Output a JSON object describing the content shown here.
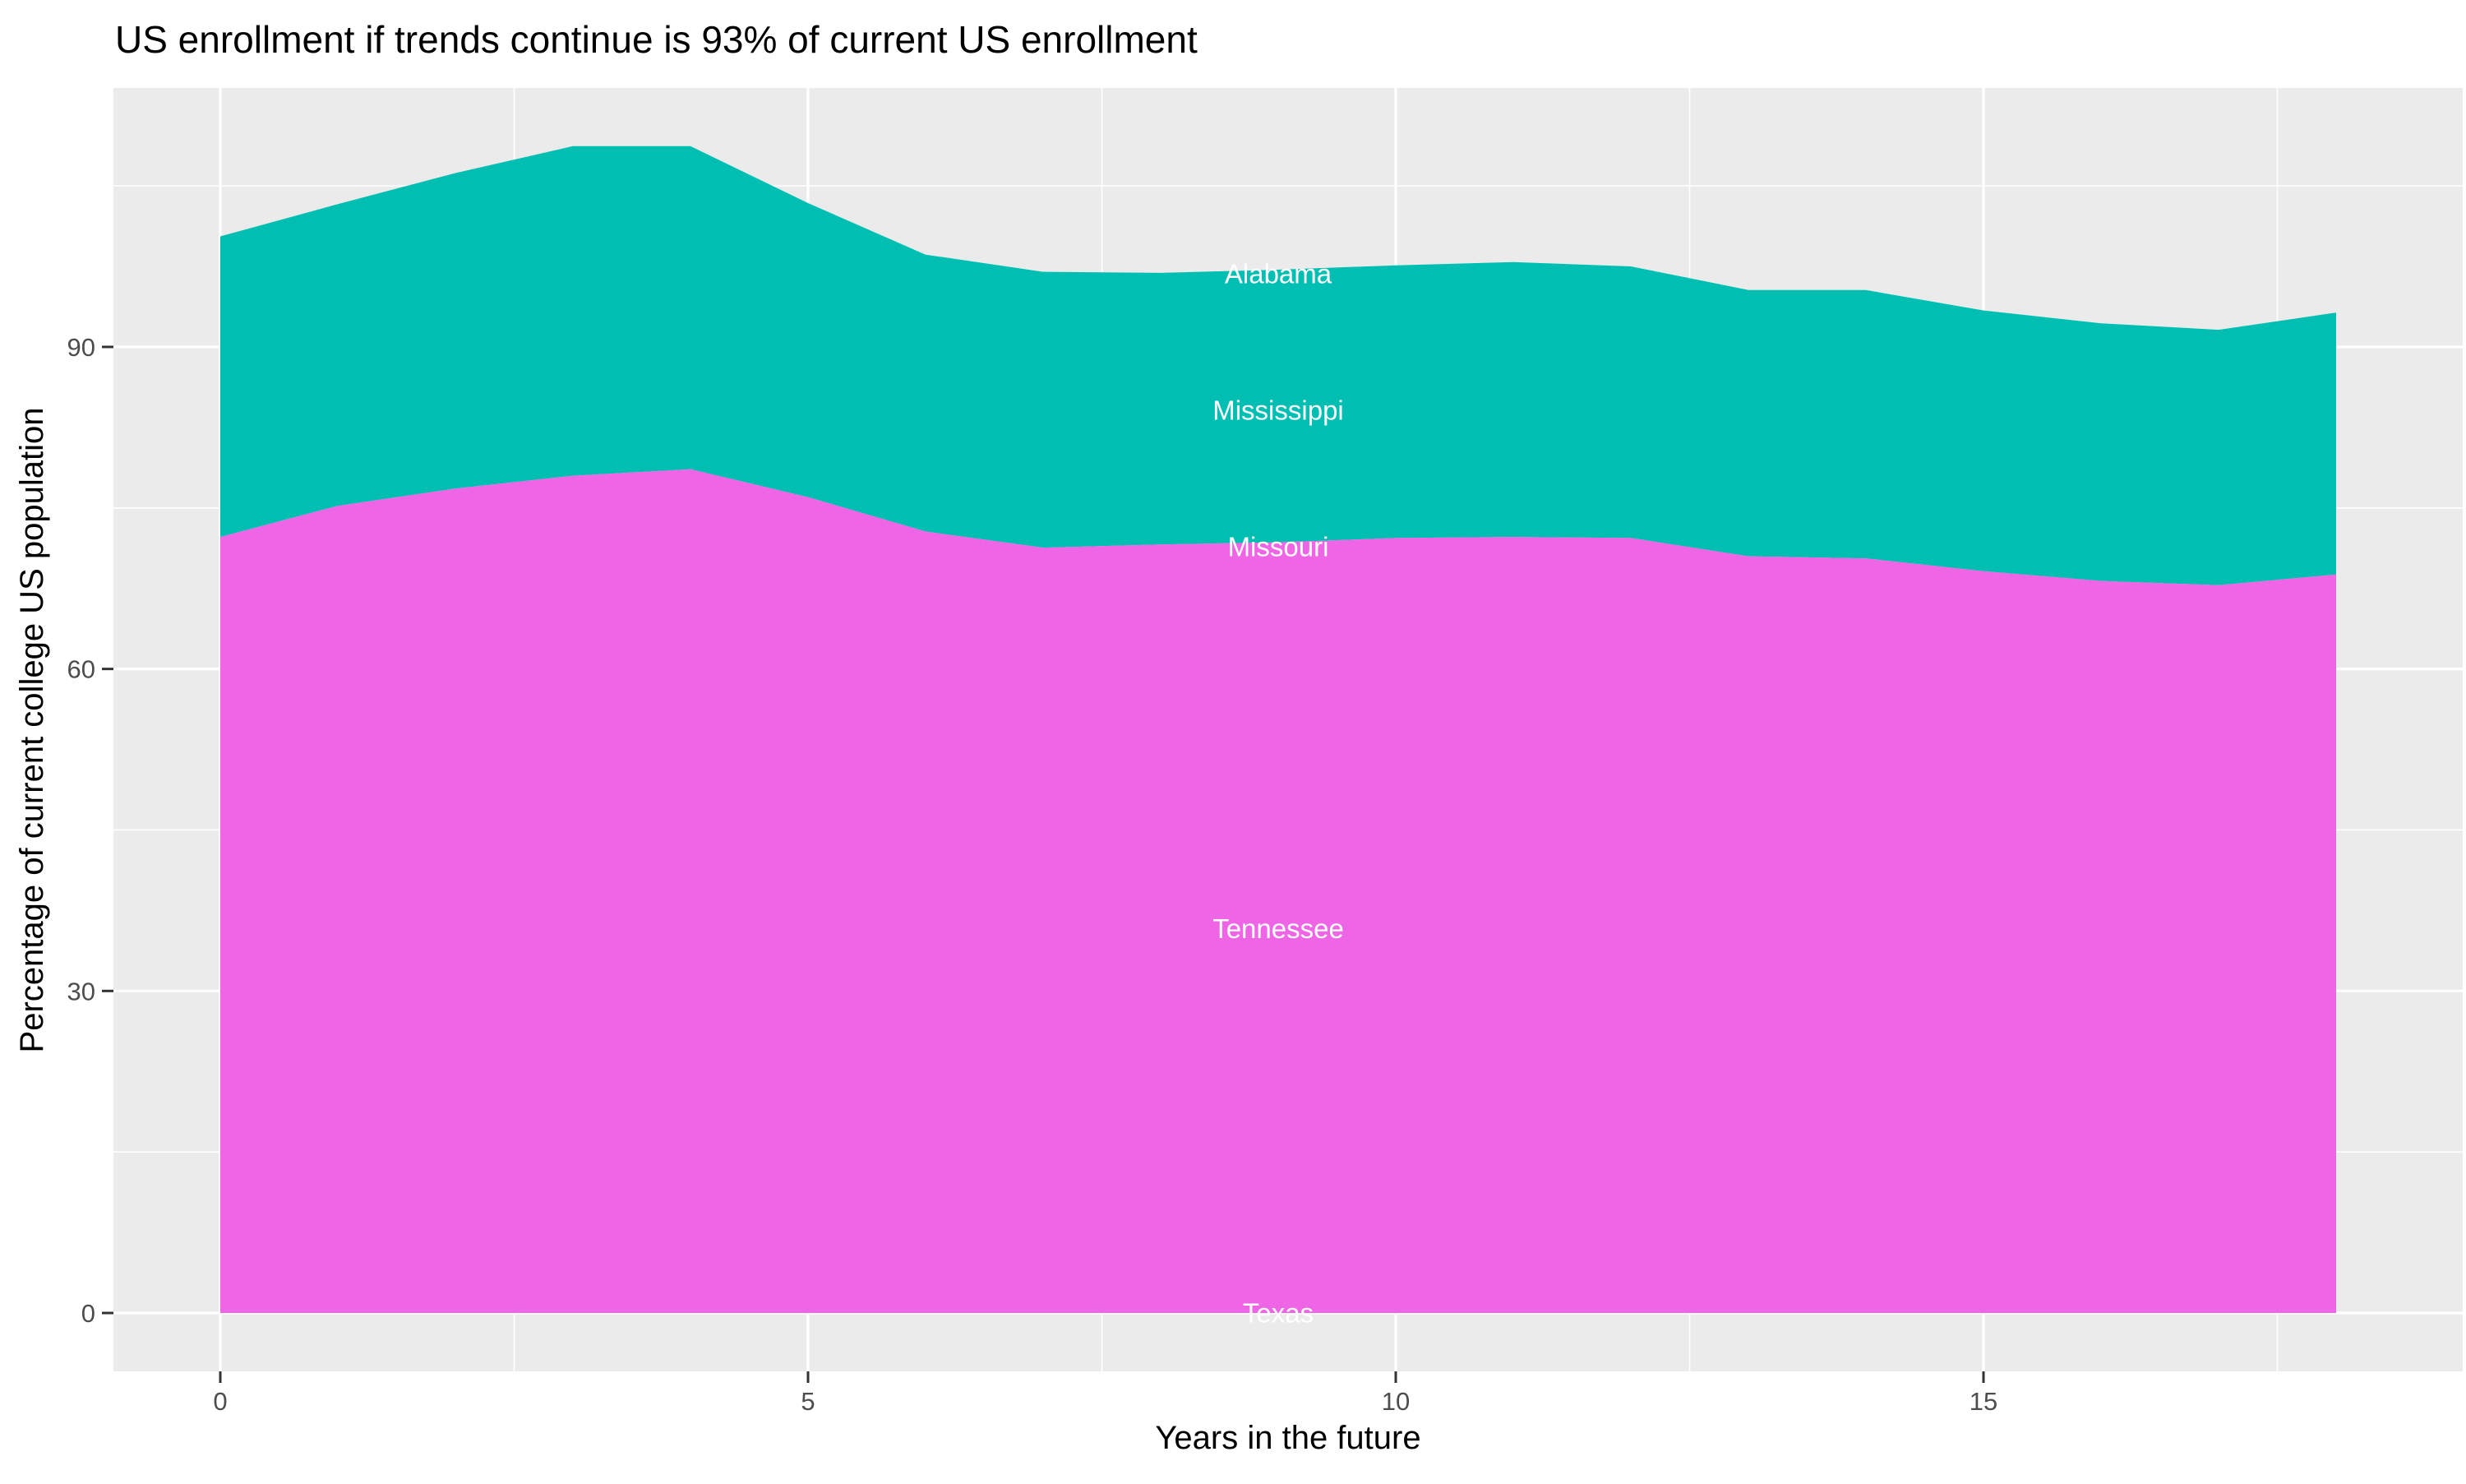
{
  "title": "US enrollment if trends continue is 93% of current US enrollment",
  "colors": {
    "background": "#FFFFFF",
    "panel": "#EBEBEB",
    "gridline": "#FFFFFF",
    "tick_mark": "#333333",
    "tick_label": "#4D4D4D",
    "axis_title": "#000000",
    "title": "#000000",
    "teal_band": "#00BFB2",
    "magenta_band": "#EE65E5",
    "area_label": "#FFFFFF"
  },
  "axes": {
    "x": {
      "label": "Years in the future",
      "major_ticks": [
        0,
        5,
        10,
        15
      ],
      "minor_ticks": [
        2.5,
        7.5,
        12.5,
        17.5
      ],
      "tick_labels": [
        "0",
        "5",
        "10",
        "15"
      ]
    },
    "y": {
      "label": "Percentage of current college US population",
      "major_ticks": [
        0,
        30,
        60,
        90
      ],
      "minor_ticks": [
        15,
        45,
        75,
        105
      ],
      "tick_labels": [
        "0",
        "30",
        "60",
        "90"
      ]
    }
  },
  "chart_data": {
    "type": "area",
    "stacked": true,
    "title": "US enrollment if trends continue is 93% of current US enrollment",
    "xlabel": "Years in the future",
    "ylabel": "Percentage of current college US population",
    "x": [
      0,
      1,
      2,
      3,
      4,
      5,
      6,
      7,
      8,
      9,
      10,
      11,
      12,
      13,
      14,
      15,
      16,
      17,
      18
    ],
    "xlim": [
      -0.9,
      19.1
    ],
    "ylim": [
      -5.4,
      114.2
    ],
    "grid": true,
    "legend": "none (bands labeled in-plot)",
    "series": [
      {
        "name": "magenta-band",
        "states": [
          "Texas",
          "Tennessee"
        ],
        "color": "#EE65E5",
        "note": "cumulative top of magenta region (Texas+Tennessee), band spans 0 to these values",
        "values": [
          72.3,
          75.2,
          76.8,
          78.0,
          78.6,
          76.0,
          72.8,
          71.3,
          71.6,
          71.8,
          72.2,
          72.3,
          72.2,
          70.5,
          70.3,
          69.1,
          68.2,
          67.8,
          68.8
        ]
      },
      {
        "name": "teal-band",
        "states": [
          "Missouri",
          "Mississippi",
          "Alabama"
        ],
        "color": "#00BFB2",
        "note": "cumulative total (top of teal region); band spans magenta top to these values",
        "values": [
          100.3,
          103.3,
          106.2,
          108.7,
          108.7,
          103.4,
          98.6,
          97.0,
          96.9,
          97.2,
          97.6,
          97.9,
          97.5,
          95.3,
          95.3,
          93.4,
          92.2,
          91.6,
          93.2
        ]
      }
    ],
    "labels": [
      {
        "text": "Alabama",
        "x": 9,
        "y": 96.8,
        "color": "#FFFFFF"
      },
      {
        "text": "Mississippi",
        "x": 9,
        "y": 84.1,
        "color": "#FFFFFF"
      },
      {
        "text": "Missouri",
        "x": 9,
        "y": 71.4,
        "color": "#FFFFFF"
      },
      {
        "text": "Tennessee",
        "x": 9,
        "y": 35.8,
        "color": "#FFFFFF"
      },
      {
        "text": "Texas",
        "x": 9,
        "y": 0.0,
        "color": "#FFFFFF"
      }
    ]
  }
}
